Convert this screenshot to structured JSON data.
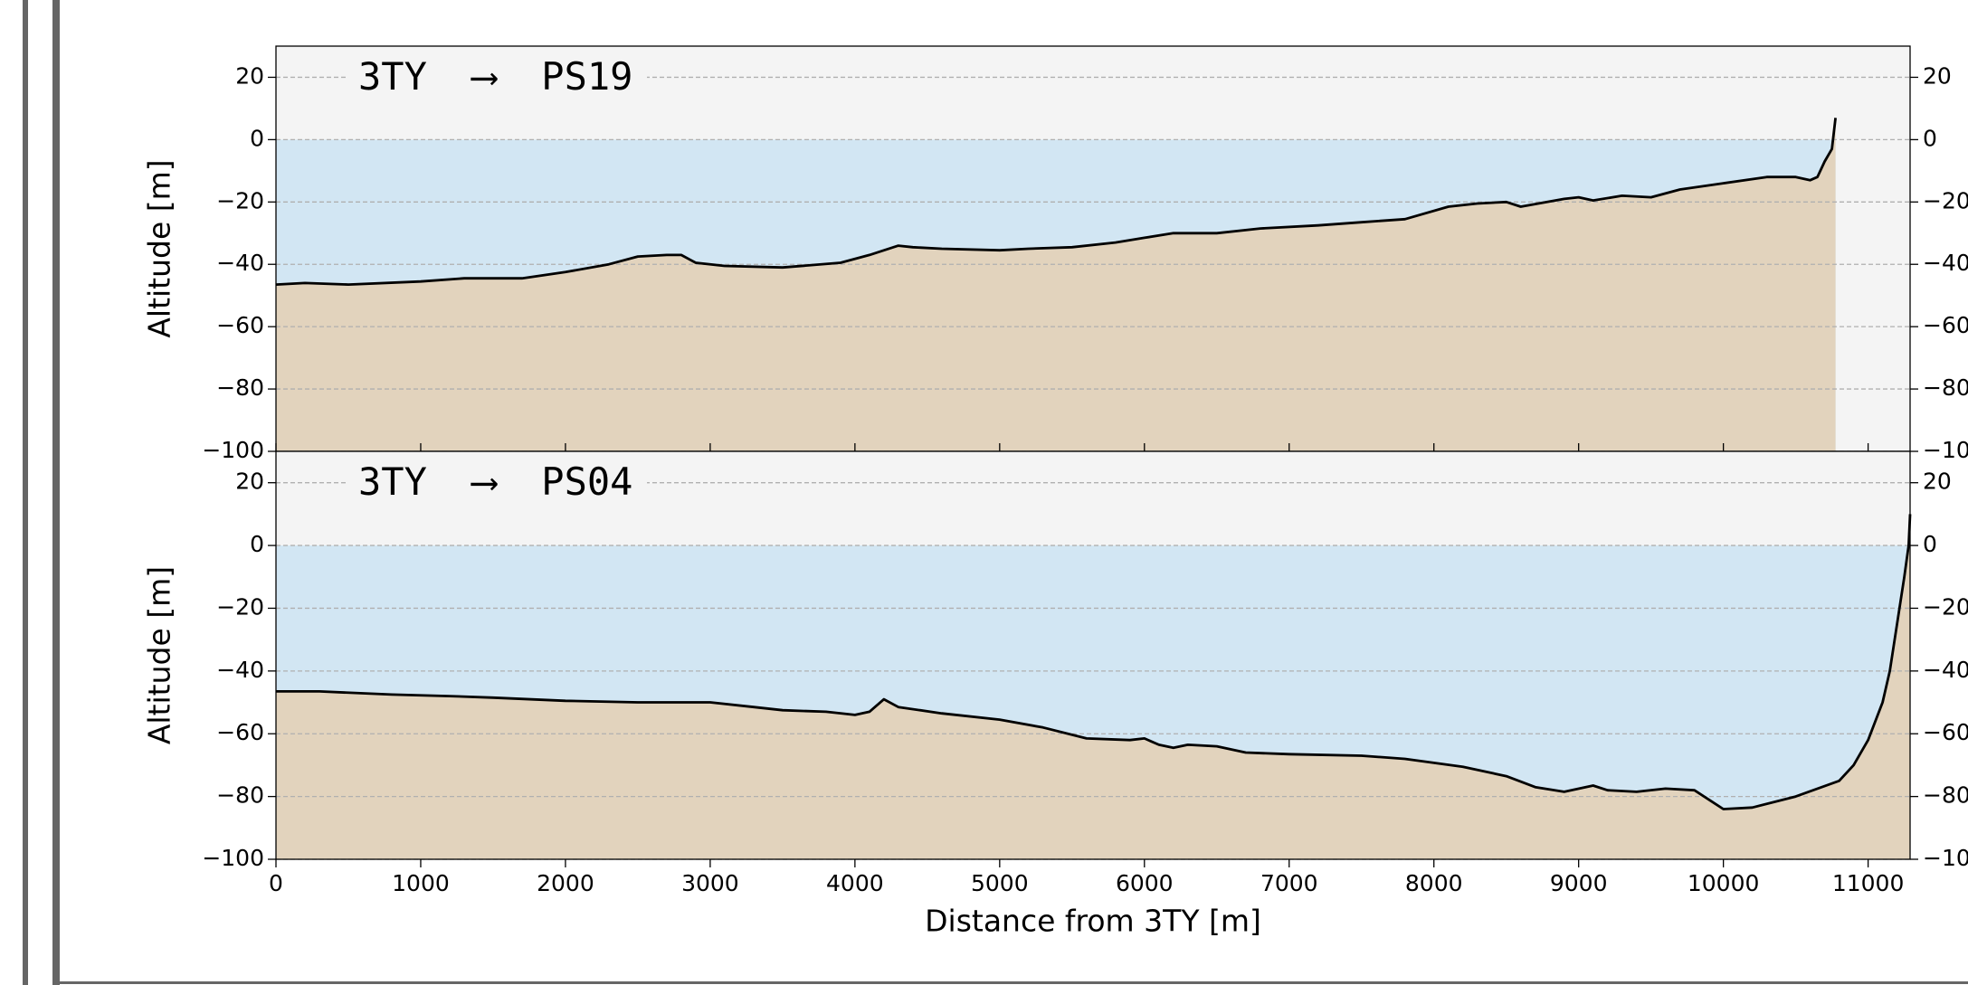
{
  "chart_data": [
    {
      "type": "area",
      "annotation": "3TY  ⟶  PS19",
      "ylabel": "Altitude [m]",
      "x": [
        0,
        200,
        500,
        1000,
        1300,
        1700,
        2000,
        2300,
        2500,
        2700,
        2800,
        2900,
        3100,
        3500,
        3900,
        4100,
        4300,
        4400,
        4600,
        5000,
        5200,
        5500,
        5800,
        6000,
        6200,
        6500,
        6800,
        7200,
        7500,
        7800,
        8100,
        8300,
        8500,
        8600,
        8900,
        9000,
        9100,
        9300,
        9500,
        9700,
        10000,
        10300,
        10500,
        10600,
        10650,
        10700,
        10750,
        10775
      ],
      "values": [
        -46.5,
        -46,
        -46.5,
        -45.5,
        -44.5,
        -44.5,
        -42.5,
        -40,
        -37.5,
        -37,
        -37,
        -39.5,
        -40.5,
        -41,
        -39.5,
        -37,
        -34,
        -34.5,
        -35,
        -35.5,
        -35,
        -34.5,
        -33,
        -31.5,
        -30,
        -30,
        -28.5,
        -27.5,
        -26.5,
        -25.5,
        -21.5,
        -20.5,
        -20,
        -21.5,
        -19,
        -18.5,
        -19.5,
        -18,
        -18.5,
        -16,
        -14,
        -12,
        -12,
        -13,
        -12,
        -7,
        -3,
        7
      ],
      "color": "#000000",
      "sea_color": "#d2e6f3",
      "fill_color": "#e2d3bd",
      "background": "#f4f4f4",
      "xlim": [
        0,
        11290
      ],
      "xticks": [
        0,
        1000,
        2000,
        3000,
        4000,
        5000,
        6000,
        7000,
        8000,
        9000,
        10000,
        11000
      ],
      "ylim": [
        -100,
        30
      ],
      "yticks": [
        {
          "value": -100,
          "label": "−100"
        },
        {
          "value": -80,
          "label": "−80"
        },
        {
          "value": -60,
          "label": "−60"
        },
        {
          "value": -40,
          "label": "−40"
        },
        {
          "value": -20,
          "label": "−20"
        },
        0,
        20
      ],
      "grid": true
    },
    {
      "type": "area",
      "annotation": "3TY  ⟶  PS04",
      "ylabel": "Altitude [m]",
      "xlabel": "Distance from 3TY [m]",
      "x": [
        0,
        300,
        800,
        1200,
        1500,
        2000,
        2500,
        3000,
        3300,
        3500,
        3800,
        4000,
        4100,
        4200,
        4300,
        4600,
        5000,
        5300,
        5600,
        5900,
        6000,
        6100,
        6200,
        6300,
        6500,
        6700,
        7000,
        7500,
        7800,
        8200,
        8500,
        8700,
        8900,
        9100,
        9200,
        9400,
        9600,
        9800,
        10000,
        10200,
        10500,
        10800,
        10900,
        11000,
        11100,
        11150,
        11200,
        11250,
        11280,
        11290
      ],
      "values": [
        -46.5,
        -46.5,
        -47.5,
        -48,
        -48.5,
        -49.5,
        -50,
        -50,
        -51.5,
        -52.5,
        -53,
        -54,
        -53,
        -49,
        -51.5,
        -53.5,
        -55.5,
        -58,
        -61.5,
        -62,
        -61.5,
        -63.5,
        -64.5,
        -63.5,
        -64,
        -66,
        -66.5,
        -67,
        -68,
        -70.5,
        -73.5,
        -77,
        -78.5,
        -76.5,
        -78,
        -78.5,
        -77.5,
        -78,
        -84,
        -83.5,
        -80,
        -75,
        -70,
        -62,
        -50,
        -40,
        -25,
        -10,
        0,
        10
      ],
      "color": "#000000",
      "sea_color": "#d2e6f3",
      "fill_color": "#e2d3bd",
      "background": "#f4f4f4",
      "xlim": [
        0,
        11290
      ],
      "xticks": [
        0,
        1000,
        2000,
        3000,
        4000,
        5000,
        6000,
        7000,
        8000,
        9000,
        10000,
        11000
      ],
      "ylim": [
        -100,
        30
      ],
      "yticks": [
        {
          "value": -100,
          "label": "−100"
        },
        {
          "value": -80,
          "label": "−80"
        },
        {
          "value": -60,
          "label": "−60"
        },
        {
          "value": -40,
          "label": "−40"
        },
        {
          "value": -20,
          "label": "−20"
        },
        0,
        20
      ],
      "grid": true
    }
  ]
}
